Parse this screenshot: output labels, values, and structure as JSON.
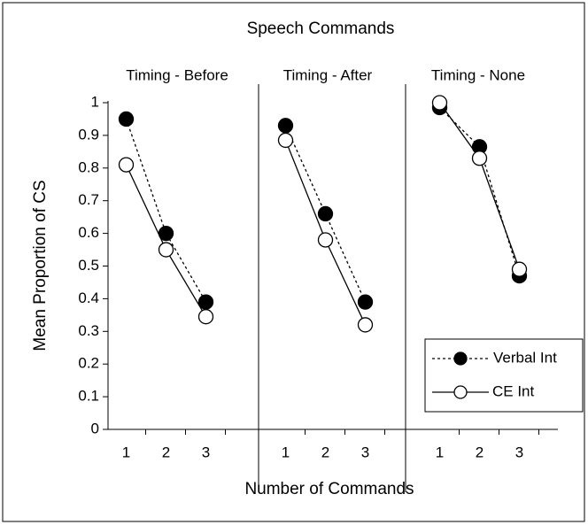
{
  "chart_data": {
    "type": "line",
    "title": "Speech Commands",
    "x_label": "Number of Commands",
    "y_label": "Mean Proportion of CS",
    "ylim": [
      0,
      1
    ],
    "yticks": [
      0,
      0.1,
      0.2,
      0.3,
      0.4,
      0.5,
      0.6,
      0.7,
      0.8,
      0.9,
      1
    ],
    "xlim": [
      0.5,
      3.5
    ],
    "legend": "lower right",
    "panels": [
      {
        "subtitle": "Timing - Before",
        "x": [
          1,
          2,
          3
        ],
        "series": [
          {
            "name": "Verbal Int",
            "color": "#000000",
            "dashed": true,
            "marker": "filled",
            "values": [
              0.95,
              0.6,
              0.39
            ]
          },
          {
            "name": "CE Int",
            "color": "#000000",
            "dashed": false,
            "marker": "open",
            "values": [
              0.81,
              0.55,
              0.345
            ]
          }
        ]
      },
      {
        "subtitle": "Timing - After",
        "x": [
          1,
          2,
          3
        ],
        "series": [
          {
            "name": "Verbal Int",
            "color": "#000000",
            "dashed": true,
            "marker": "filled",
            "values": [
              0.93,
              0.66,
              0.39
            ]
          },
          {
            "name": "CE Int",
            "color": "#000000",
            "dashed": false,
            "marker": "open",
            "values": [
              0.885,
              0.58,
              0.32
            ]
          }
        ]
      },
      {
        "subtitle": "Timing - None",
        "x": [
          1,
          2,
          3
        ],
        "series": [
          {
            "name": "Verbal Int",
            "color": "#000000",
            "dashed": true,
            "marker": "filled",
            "values": [
              0.985,
              0.865,
              0.47
            ]
          },
          {
            "name": "CE Int",
            "color": "#000000",
            "dashed": false,
            "marker": "open",
            "values": [
              1,
              0.83,
              0.49
            ]
          }
        ]
      }
    ]
  }
}
